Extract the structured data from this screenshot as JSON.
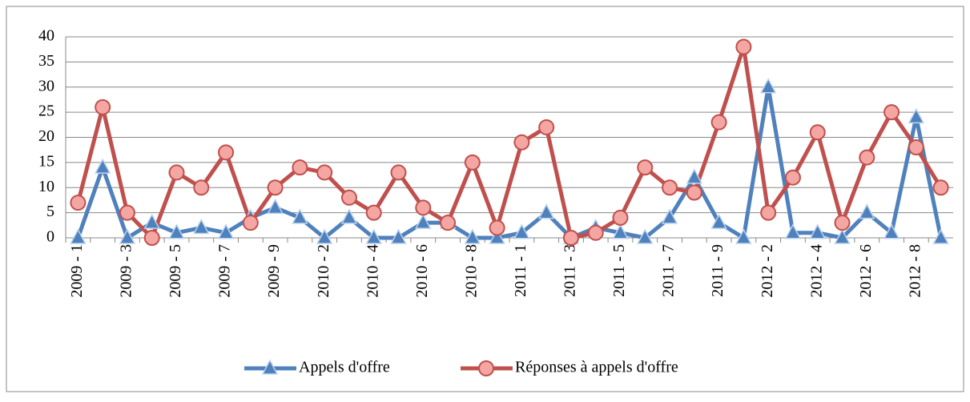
{
  "chart_data": {
    "type": "line",
    "categories": [
      "2009 - 1",
      null,
      "2009 - 3",
      null,
      "2009 - 5",
      null,
      "2009 - 7",
      null,
      "2009 - 9",
      null,
      "2010 - 2",
      null,
      "2010 - 4",
      null,
      "2010 - 6",
      null,
      "2010 - 8",
      null,
      "2011 - 1",
      null,
      "2011 - 3",
      null,
      "2011 - 5",
      null,
      "2011 - 7",
      null,
      "2011 - 9",
      null,
      "2012 - 2",
      null,
      "2012 - 4",
      null,
      "2012 - 6",
      null,
      "2012 - 8",
      null
    ],
    "series": [
      {
        "name": "Appels d'offre",
        "color": "#4f81bd",
        "marker": "triangle",
        "values": [
          0,
          14,
          0,
          3,
          1,
          2,
          1,
          4,
          6,
          4,
          0,
          4,
          0,
          0,
          3,
          3,
          0,
          0,
          1,
          5,
          0,
          2,
          1,
          0,
          4,
          12,
          3,
          0,
          30,
          1,
          1,
          0,
          5,
          1,
          24,
          0
        ]
      },
      {
        "name": "Réponses à appels d'offre",
        "color": "#c0504d",
        "marker": "circle",
        "values": [
          7,
          26,
          5,
          0,
          13,
          10,
          17,
          3,
          10,
          14,
          13,
          8,
          5,
          13,
          6,
          3,
          15,
          2,
          19,
          22,
          0,
          1,
          4,
          14,
          10,
          9,
          23,
          38,
          5,
          12,
          21,
          3,
          16,
          25,
          18,
          10
        ]
      }
    ],
    "ylim": [
      0,
      40
    ],
    "yticks": [
      0,
      5,
      10,
      15,
      20,
      25,
      30,
      35,
      40
    ],
    "grid": true,
    "legend": "bottom"
  }
}
